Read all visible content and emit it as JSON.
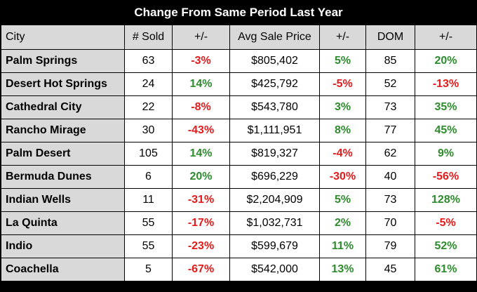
{
  "title": "Change From Same Period Last Year",
  "columns": [
    "City",
    "# Sold",
    "+/-",
    "Avg Sale Price",
    "+/-",
    "DOM",
    "+/-"
  ],
  "rows": [
    {
      "city": "Palm Springs",
      "sold": "63",
      "sold_chg": "-3%",
      "price": "$805,402",
      "price_chg": "5%",
      "dom": "85",
      "dom_chg": "20%"
    },
    {
      "city": "Desert Hot Springs",
      "sold": "24",
      "sold_chg": "14%",
      "price": "$425,792",
      "price_chg": "-5%",
      "dom": "52",
      "dom_chg": "-13%"
    },
    {
      "city": "Cathedral City",
      "sold": "22",
      "sold_chg": "-8%",
      "price": "$543,780",
      "price_chg": "3%",
      "dom": "73",
      "dom_chg": "35%"
    },
    {
      "city": "Rancho Mirage",
      "sold": "30",
      "sold_chg": "-43%",
      "price": "$1,111,951",
      "price_chg": "8%",
      "dom": "77",
      "dom_chg": "45%"
    },
    {
      "city": "Palm Desert",
      "sold": "105",
      "sold_chg": "14%",
      "price": "$819,327",
      "price_chg": "-4%",
      "dom": "62",
      "dom_chg": "9%"
    },
    {
      "city": "Bermuda Dunes",
      "sold": "6",
      "sold_chg": "20%",
      "price": "$696,229",
      "price_chg": "-30%",
      "dom": "40",
      "dom_chg": "-56%"
    },
    {
      "city": "Indian Wells",
      "sold": "11",
      "sold_chg": "-31%",
      "price": "$2,204,909",
      "price_chg": "5%",
      "dom": "73",
      "dom_chg": "128%"
    },
    {
      "city": "La Quinta",
      "sold": "55",
      "sold_chg": "-17%",
      "price": "$1,032,731",
      "price_chg": "2%",
      "dom": "70",
      "dom_chg": "-5%"
    },
    {
      "city": "Indio",
      "sold": "55",
      "sold_chg": "-23%",
      "price": "$599,679",
      "price_chg": "11%",
      "dom": "79",
      "dom_chg": "52%"
    },
    {
      "city": "Coachella",
      "sold": "5",
      "sold_chg": "-67%",
      "price": "$542,000",
      "price_chg": "13%",
      "dom": "45",
      "dom_chg": "61%"
    }
  ],
  "colors": {
    "positive": "#2e8b2e",
    "negative": "#e21b1b",
    "header_bg": "#d9d9d9",
    "title_bg": "#000000"
  }
}
